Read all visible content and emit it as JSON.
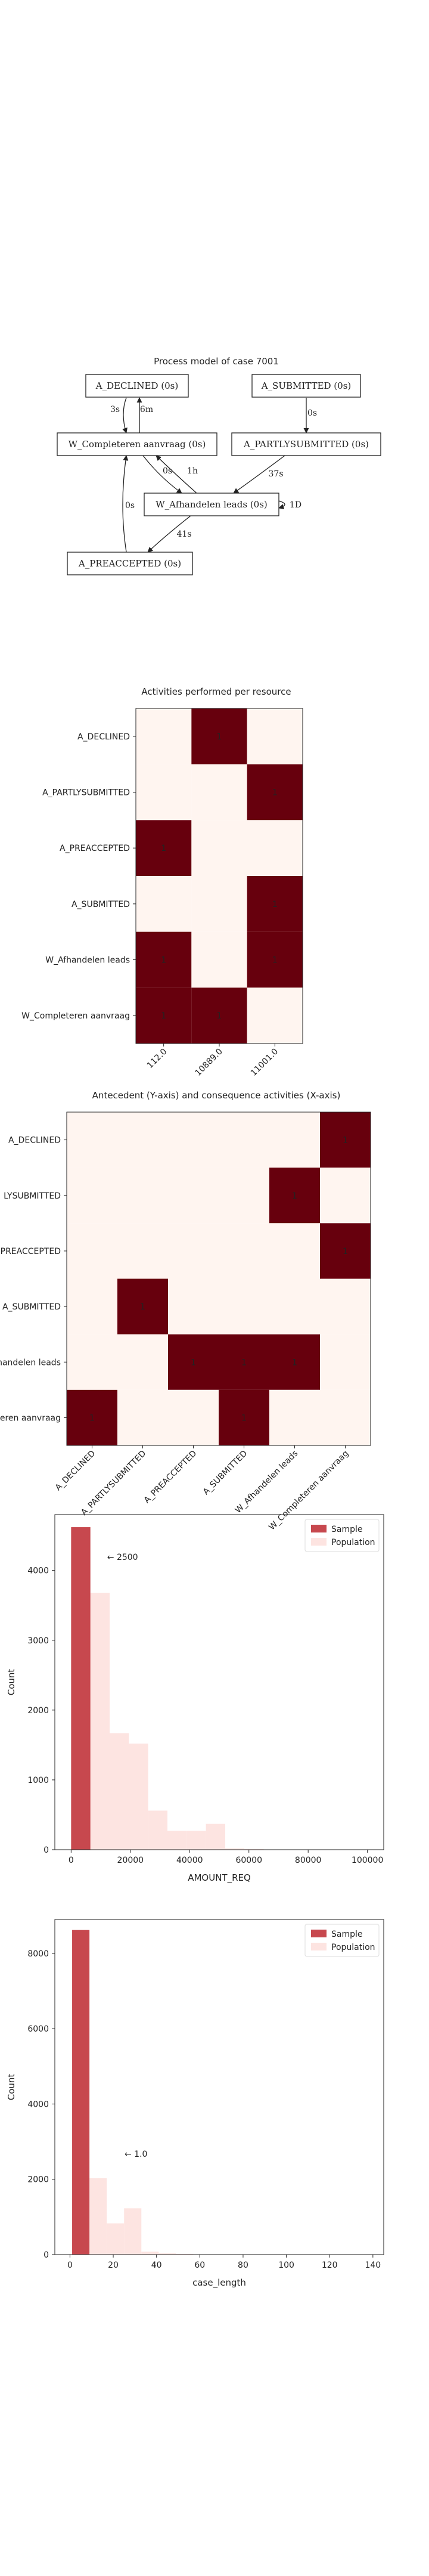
{
  "colors": {
    "heat_on": "#67000d",
    "heat_off": "#fff5f0",
    "sample": "#c7484e",
    "population": "#fde4e1",
    "node_border": "#222222"
  },
  "chart_data": [
    {
      "type": "diagram",
      "title": "Process model of case 7001",
      "nodes": [
        {
          "id": "declined",
          "label": "A_DECLINED (0s)"
        },
        {
          "id": "submitted",
          "label": "A_SUBMITTED (0s)"
        },
        {
          "id": "completeren",
          "label": "W_Completeren aanvraag (0s)"
        },
        {
          "id": "partly",
          "label": "A_PARTLYSUBMITTED (0s)"
        },
        {
          "id": "afhandelen",
          "label": "W_Afhandelen leads (0s)"
        },
        {
          "id": "preaccepted",
          "label": "A_PREACCEPTED (0s)"
        }
      ],
      "edges": [
        {
          "from": "completeren",
          "to": "declined",
          "label": "3s"
        },
        {
          "from": "declined",
          "to": "completeren",
          "label": "6m"
        },
        {
          "from": "submitted",
          "to": "partly",
          "label": "0s"
        },
        {
          "from": "completeren",
          "to": "afhandelen",
          "label": "0s"
        },
        {
          "from": "afhandelen",
          "to": "completeren",
          "label": "1h"
        },
        {
          "from": "partly",
          "to": "afhandelen",
          "label": "37s"
        },
        {
          "from": "afhandelen",
          "to": "afhandelen",
          "label": "1D"
        },
        {
          "from": "afhandelen",
          "to": "preaccepted",
          "label": "41s"
        },
        {
          "from": "preaccepted",
          "to": "completeren",
          "label": "0s"
        }
      ]
    },
    {
      "type": "heatmap",
      "title": "Activities performed per resource",
      "x_categories": [
        "112.0",
        "10889.0",
        "11001.0"
      ],
      "y_categories": [
        "A_DECLINED",
        "A_PARTLYSUBMITTED",
        "A_PREACCEPTED",
        "A_SUBMITTED",
        "W_Afhandelen leads",
        "W_Completeren aanvraag"
      ],
      "values": [
        [
          0,
          1,
          0
        ],
        [
          0,
          0,
          1
        ],
        [
          1,
          0,
          0
        ],
        [
          0,
          0,
          1
        ],
        [
          1,
          0,
          1
        ],
        [
          1,
          1,
          0
        ]
      ]
    },
    {
      "type": "heatmap",
      "title": "Antecedent (Y-axis) and consequence activities (X-axis)",
      "x_categories": [
        "A_DECLINED",
        "A_PARTLYSUBMITTED",
        "A_PREACCEPTED",
        "A_SUBMITTED",
        "W_Afhandelen leads",
        "W_Completeren aanvraag"
      ],
      "y_categories": [
        "A_DECLINED",
        "A_PARTLYSUBMITTED",
        "A_PREACCEPTED",
        "A_SUBMITTED",
        "W_Afhandelen leads",
        "W_Completeren aanvraag"
      ],
      "y_tick_labels_visible": [
        "A_DECLINED",
        "LYSUBMITTED",
        "PREACCEPTED",
        "A_SUBMITTED",
        "handelen leads",
        "eren aanvraag"
      ],
      "values": [
        [
          0,
          0,
          0,
          0,
          0,
          1
        ],
        [
          0,
          0,
          0,
          0,
          1,
          0
        ],
        [
          0,
          0,
          0,
          0,
          0,
          1
        ],
        [
          0,
          1,
          0,
          0,
          0,
          0
        ],
        [
          0,
          0,
          1,
          1,
          1,
          0
        ],
        [
          1,
          0,
          0,
          1,
          0,
          0
        ]
      ]
    },
    {
      "type": "bar",
      "xlabel": "AMOUNT_REQ",
      "ylabel": "Count",
      "xlim": [
        -5500,
        105500
      ],
      "ylim": [
        0,
        4800
      ],
      "xticks": [
        0,
        20000,
        40000,
        60000,
        80000,
        100000
      ],
      "yticks": [
        0,
        1000,
        2000,
        3000,
        4000
      ],
      "legend": "top-right",
      "annotation": "← 2500",
      "annotation_x": 2500,
      "annotation_y": 4150,
      "series": [
        {
          "name": "Sample",
          "bins": [
            [
              0,
              6500,
              4620
            ]
          ]
        },
        {
          "name": "Population",
          "bins": [
            [
              0,
              6500,
              4620
            ],
            [
              6500,
              13000,
              3680
            ],
            [
              13000,
              19500,
              1670
            ],
            [
              19500,
              26000,
              1520
            ],
            [
              26000,
              32500,
              560
            ],
            [
              32500,
              39000,
              270
            ],
            [
              39000,
              45500,
              270
            ],
            [
              45500,
              52000,
              370
            ],
            [
              52000,
              58500,
              20
            ],
            [
              58500,
              65000,
              10
            ]
          ]
        }
      ]
    },
    {
      "type": "bar",
      "xlabel": "case_length",
      "ylabel": "Count",
      "xlim": [
        -7,
        145
      ],
      "ylim": [
        0,
        8900
      ],
      "xticks": [
        0,
        20,
        40,
        60,
        80,
        100,
        120,
        140
      ],
      "yticks": [
        0,
        2000,
        4000,
        6000,
        8000
      ],
      "legend": "top-right",
      "annotation": "← 1.0",
      "annotation_x": 12,
      "annotation_y": 2600,
      "series": [
        {
          "name": "Sample",
          "bins": [
            [
              1,
              9,
              8620
            ]
          ]
        },
        {
          "name": "Population",
          "bins": [
            [
              1,
              9,
              8620
            ],
            [
              9,
              17,
              2030
            ],
            [
              17,
              25,
              830
            ],
            [
              25,
              33,
              1230
            ],
            [
              33,
              41,
              80
            ],
            [
              41,
              49,
              40
            ],
            [
              49,
              57,
              15
            ],
            [
              57,
              65,
              8
            ]
          ]
        }
      ]
    }
  ]
}
